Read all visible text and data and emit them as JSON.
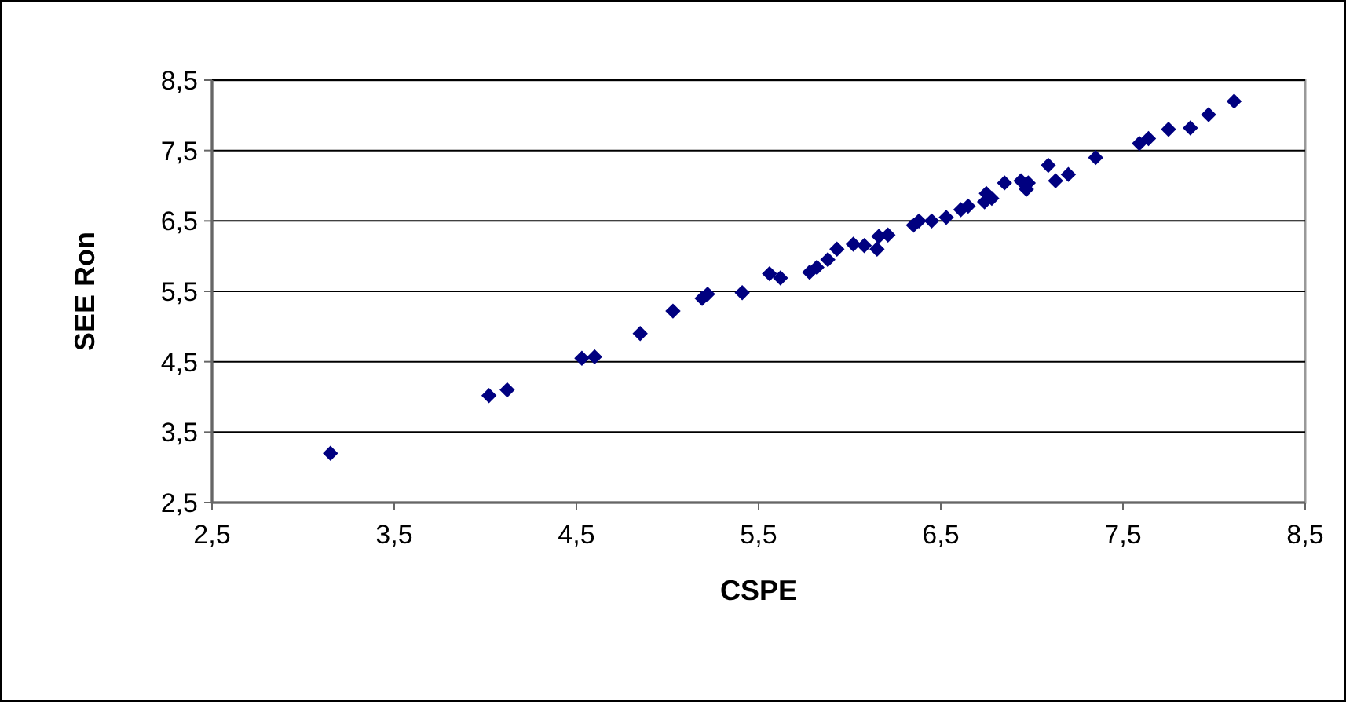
{
  "chart_data": {
    "type": "scatter",
    "xlabel": "CSPE",
    "ylabel": "SEE Ron",
    "marker": "diamond",
    "grid": "y",
    "xlim": [
      2.5,
      8.5
    ],
    "ylim": [
      2.5,
      8.5
    ],
    "xticks": [
      {
        "value": 2.5,
        "label": "2,5"
      },
      {
        "value": 3.5,
        "label": "3,5"
      },
      {
        "value": 4.5,
        "label": "4,5"
      },
      {
        "value": 5.5,
        "label": "5,5"
      },
      {
        "value": 6.5,
        "label": "6,5"
      },
      {
        "value": 7.5,
        "label": "7,5"
      },
      {
        "value": 8.5,
        "label": "8,5"
      }
    ],
    "yticks": [
      {
        "value": 2.5,
        "label": "2,5"
      },
      {
        "value": 3.5,
        "label": "3,5"
      },
      {
        "value": 4.5,
        "label": "4,5"
      },
      {
        "value": 5.5,
        "label": "5,5"
      },
      {
        "value": 6.5,
        "label": "6,5"
      },
      {
        "value": 7.5,
        "label": "7,5"
      },
      {
        "value": 8.5,
        "label": "8,5"
      }
    ],
    "series": [
      {
        "color": "#000080",
        "x": [
          3.15,
          4.02,
          4.12,
          4.53,
          4.6,
          4.85,
          5.03,
          5.19,
          5.22,
          5.41,
          5.56,
          5.62,
          5.78,
          5.82,
          5.88,
          5.93,
          6.02,
          6.08,
          6.15,
          6.16,
          6.21,
          6.35,
          6.38,
          6.45,
          6.53,
          6.61,
          6.65,
          6.74,
          6.78,
          6.75,
          6.85,
          6.94,
          6.97,
          6.98,
          7.09,
          7.13,
          7.2,
          7.35,
          7.59,
          7.64,
          7.75,
          7.87,
          7.97,
          8.11
        ],
        "values": [
          3.2,
          4.02,
          4.1,
          4.55,
          4.57,
          4.9,
          5.22,
          5.4,
          5.46,
          5.48,
          5.75,
          5.69,
          5.77,
          5.84,
          5.95,
          6.1,
          6.17,
          6.15,
          6.1,
          6.28,
          6.3,
          6.44,
          6.5,
          6.5,
          6.55,
          6.66,
          6.71,
          6.77,
          6.82,
          6.89,
          7.04,
          7.07,
          6.95,
          7.04,
          7.29,
          7.07,
          7.16,
          7.4,
          7.6,
          7.67,
          7.8,
          7.82,
          8.01,
          8.2
        ]
      }
    ]
  }
}
